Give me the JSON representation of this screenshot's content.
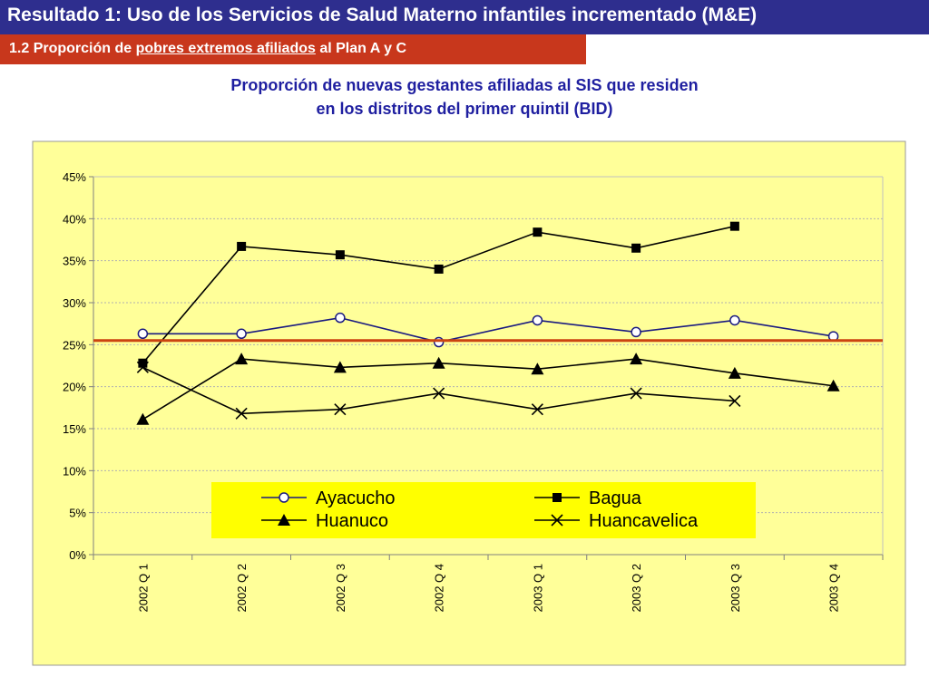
{
  "header": {
    "title": "Resultado 1: Uso de los Servicios de Salud Materno infantiles incrementado (M&E)",
    "subtitle_prefix": "1.2 Proporción de ",
    "subtitle_underlined": "pobres extremos afiliados",
    "subtitle_suffix": " al Plan A y C"
  },
  "chart_heading": {
    "line1": "Proporción de nuevas gestantes afiliadas al SIS que residen",
    "line2": "en los distritos del primer quintil (BID)"
  },
  "colors": {
    "title_bar": "#2e2e8e",
    "subtitle_bar": "#c8371c",
    "chart_area": "#ffff99",
    "legend_bg": "#ffff00",
    "reference_line": "#cc4411",
    "ayacucho_line": "#1a1a80",
    "series_black": "#000000"
  },
  "chart_data": {
    "type": "line",
    "categories": [
      "2002 Q 1",
      "2002 Q 2",
      "2002 Q 3",
      "2002 Q 4",
      "2003 Q 1",
      "2003 Q 2",
      "2003 Q 3",
      "2003 Q 4"
    ],
    "ylim": [
      0,
      45
    ],
    "yticks": [
      0,
      5,
      10,
      15,
      20,
      25,
      30,
      35,
      40,
      45
    ],
    "ytick_labels": [
      "0%",
      "5%",
      "10%",
      "15%",
      "20%",
      "25%",
      "30%",
      "35%",
      "40%",
      "45%"
    ],
    "grid": true,
    "reference_line": 25.5,
    "legend_position": "lower-center",
    "series": [
      {
        "name": "Ayacucho",
        "marker": "circle-open",
        "values": [
          26.3,
          26.3,
          28.2,
          25.3,
          27.9,
          26.5,
          27.9,
          26.0
        ]
      },
      {
        "name": "Bagua",
        "marker": "square",
        "values": [
          22.8,
          36.7,
          35.7,
          34.0,
          38.4,
          36.5,
          39.1,
          null
        ]
      },
      {
        "name": "Huanuco",
        "marker": "triangle",
        "values": [
          16.1,
          23.3,
          22.3,
          22.8,
          22.1,
          23.3,
          21.6,
          20.1
        ]
      },
      {
        "name": "Huancavelica",
        "marker": "x",
        "values": [
          22.3,
          16.8,
          17.3,
          19.2,
          17.3,
          19.2,
          18.3,
          null
        ]
      }
    ]
  }
}
